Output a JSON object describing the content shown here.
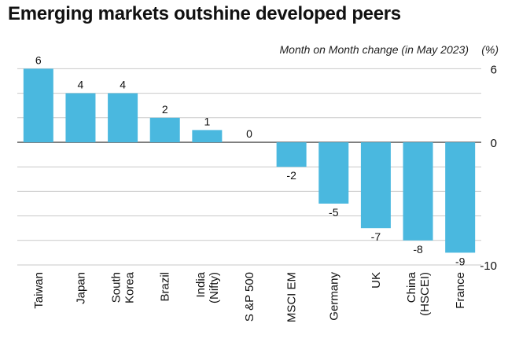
{
  "chart_data": {
    "type": "bar",
    "title": "Emerging markets outshine developed peers",
    "subtitle": "Month on Month change (in May 2023)",
    "unit": "(%)",
    "categories": [
      [
        "Taiwan"
      ],
      [
        "Japan"
      ],
      [
        "South",
        "Korea"
      ],
      [
        "Brazil"
      ],
      [
        "India",
        "(Nifty)"
      ],
      [
        "S &P 500"
      ],
      [
        "MSCI EM"
      ],
      [
        "Germany"
      ],
      [
        "UK"
      ],
      [
        "China",
        "(HSCEI)"
      ],
      [
        "France"
      ]
    ],
    "values": [
      6,
      4,
      4,
      2,
      1,
      0,
      -2,
      -5,
      -7,
      -8,
      -9
    ],
    "y_ticks": [
      6,
      0,
      -10
    ],
    "ylim": [
      -10,
      6
    ],
    "grid": true,
    "colors": {
      "bar": "#4ab8df",
      "grid": "#c9c9c9",
      "zero_line": "#333333"
    }
  }
}
